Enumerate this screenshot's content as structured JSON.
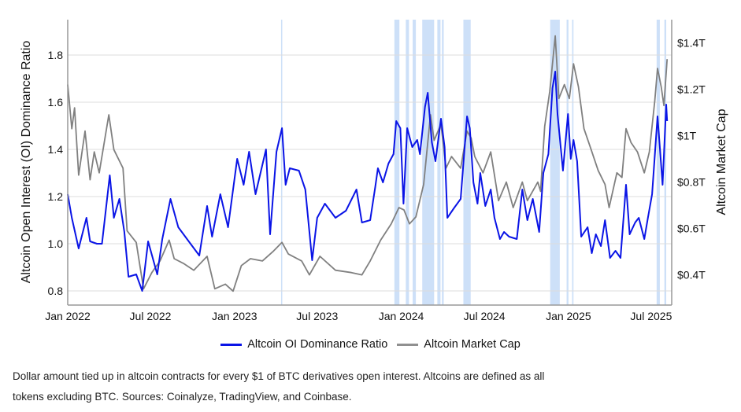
{
  "chart_data": {
    "type": "line",
    "title": "",
    "xlabel": "",
    "ylabel": "Altcoin Open Interest (OI) Dominance Ratio",
    "y2label": "Altcoin Market Cap",
    "xlim": [
      "2022-01-01",
      "2025-08-15"
    ],
    "ylim": [
      0.74,
      1.95
    ],
    "y2lim": [
      0.27,
      1.5
    ],
    "grid": true,
    "legend_position": "bottom",
    "x_ticks": [
      {
        "date": "2022-01-01",
        "label": "Jan 2022"
      },
      {
        "date": "2022-07-01",
        "label": "Jul 2022"
      },
      {
        "date": "2023-01-01",
        "label": "Jan 2023"
      },
      {
        "date": "2023-07-01",
        "label": "Jul 2023"
      },
      {
        "date": "2024-01-01",
        "label": "Jan 2024"
      },
      {
        "date": "2024-07-01",
        "label": "Jul 2024"
      },
      {
        "date": "2025-01-01",
        "label": "Jan 2025"
      },
      {
        "date": "2025-07-01",
        "label": "Jul 2025"
      }
    ],
    "y_ticks": [
      {
        "value": 0.8,
        "label": "0.8"
      },
      {
        "value": 1.0,
        "label": "1.0"
      },
      {
        "value": 1.2,
        "label": "1.2"
      },
      {
        "value": 1.4,
        "label": "1.4"
      },
      {
        "value": 1.6,
        "label": "1.6"
      },
      {
        "value": 1.8,
        "label": "1.8"
      }
    ],
    "y2_ticks": [
      {
        "value": 0.4,
        "label": "$0.4T"
      },
      {
        "value": 0.6,
        "label": "$0.6T"
      },
      {
        "value": 0.8,
        "label": "$0.8T"
      },
      {
        "value": 1.0,
        "label": "$1T"
      },
      {
        "value": 1.2,
        "label": "$1.2T"
      },
      {
        "value": 1.4,
        "label": "$1.4T"
      }
    ],
    "shaded_periods": [
      [
        "2023-04-13",
        "2023-04-15"
      ],
      [
        "2023-12-17",
        "2023-12-28"
      ],
      [
        "2024-01-11",
        "2024-01-18"
      ],
      [
        "2024-01-26",
        "2024-02-02"
      ],
      [
        "2024-02-16",
        "2024-03-13"
      ],
      [
        "2024-03-20",
        "2024-03-27"
      ],
      [
        "2024-03-30",
        "2024-04-03"
      ],
      [
        "2024-05-16",
        "2024-06-01"
      ],
      [
        "2024-11-22",
        "2024-12-13"
      ],
      [
        "2024-12-28",
        "2025-01-01"
      ],
      [
        "2025-01-09",
        "2025-01-12"
      ],
      [
        "2025-07-13",
        "2025-07-20"
      ],
      [
        "2025-07-30",
        "2025-08-03"
      ]
    ],
    "colors": {
      "oi_ratio": "#0a14e6",
      "market_cap": "#808080",
      "shade": "#c4dbf7",
      "grid": "#dddddd",
      "axis": "#999999"
    },
    "series": [
      {
        "name": "Altcoin OI Dominance Ratio",
        "axis": "left",
        "points": [
          [
            "2022-01-01",
            1.21
          ],
          [
            "2022-01-10",
            1.11
          ],
          [
            "2022-01-25",
            0.98
          ],
          [
            "2022-02-11",
            1.11
          ],
          [
            "2022-02-19",
            1.01
          ],
          [
            "2022-03-06",
            1.0
          ],
          [
            "2022-03-17",
            1.0
          ],
          [
            "2022-04-03",
            1.29
          ],
          [
            "2022-04-12",
            1.11
          ],
          [
            "2022-04-24",
            1.19
          ],
          [
            "2022-05-05",
            1.05
          ],
          [
            "2022-05-14",
            0.86
          ],
          [
            "2022-05-31",
            0.87
          ],
          [
            "2022-06-13",
            0.8
          ],
          [
            "2022-06-26",
            1.01
          ],
          [
            "2022-07-16",
            0.87
          ],
          [
            "2022-07-27",
            1.02
          ],
          [
            "2022-08-14",
            1.19
          ],
          [
            "2022-08-31",
            1.07
          ],
          [
            "2022-09-23",
            1.01
          ],
          [
            "2022-10-16",
            0.95
          ],
          [
            "2022-11-02",
            1.16
          ],
          [
            "2022-11-13",
            1.03
          ],
          [
            "2022-12-01",
            1.21
          ],
          [
            "2022-12-18",
            1.07
          ],
          [
            "2023-01-07",
            1.36
          ],
          [
            "2023-01-21",
            1.25
          ],
          [
            "2023-02-02",
            1.39
          ],
          [
            "2023-02-16",
            1.21
          ],
          [
            "2023-03-11",
            1.4
          ],
          [
            "2023-03-20",
            1.04
          ],
          [
            "2023-04-03",
            1.39
          ],
          [
            "2023-04-15",
            1.49
          ],
          [
            "2023-04-23",
            1.25
          ],
          [
            "2023-05-02",
            1.32
          ],
          [
            "2023-05-22",
            1.31
          ],
          [
            "2023-06-05",
            1.23
          ],
          [
            "2023-06-20",
            0.93
          ],
          [
            "2023-07-01",
            1.11
          ],
          [
            "2023-07-18",
            1.17
          ],
          [
            "2023-08-10",
            1.11
          ],
          [
            "2023-09-02",
            1.14
          ],
          [
            "2023-09-25",
            1.23
          ],
          [
            "2023-10-07",
            1.09
          ],
          [
            "2023-10-25",
            1.1
          ],
          [
            "2023-11-05",
            1.24
          ],
          [
            "2023-11-11",
            1.32
          ],
          [
            "2023-11-22",
            1.26
          ],
          [
            "2023-12-04",
            1.34
          ],
          [
            "2023-12-15",
            1.38
          ],
          [
            "2023-12-21",
            1.52
          ],
          [
            "2023-12-30",
            1.49
          ],
          [
            "2024-01-06",
            1.17
          ],
          [
            "2024-01-14",
            1.49
          ],
          [
            "2024-01-25",
            1.41
          ],
          [
            "2024-02-05",
            1.44
          ],
          [
            "2024-02-11",
            1.38
          ],
          [
            "2024-02-22",
            1.58
          ],
          [
            "2024-02-28",
            1.64
          ],
          [
            "2024-03-08",
            1.43
          ],
          [
            "2024-03-16",
            1.35
          ],
          [
            "2024-03-28",
            1.53
          ],
          [
            "2024-04-05",
            1.41
          ],
          [
            "2024-04-11",
            1.11
          ],
          [
            "2024-04-25",
            1.15
          ],
          [
            "2024-05-10",
            1.19
          ],
          [
            "2024-05-24",
            1.54
          ],
          [
            "2024-05-30",
            1.49
          ],
          [
            "2024-06-07",
            1.26
          ],
          [
            "2024-06-16",
            1.17
          ],
          [
            "2024-06-22",
            1.3
          ],
          [
            "2024-07-03",
            1.16
          ],
          [
            "2024-07-15",
            1.23
          ],
          [
            "2024-07-23",
            1.11
          ],
          [
            "2024-08-04",
            1.02
          ],
          [
            "2024-08-13",
            1.05
          ],
          [
            "2024-08-24",
            1.03
          ],
          [
            "2024-09-10",
            1.02
          ],
          [
            "2024-09-22",
            1.23
          ],
          [
            "2024-10-03",
            1.1
          ],
          [
            "2024-10-15",
            1.19
          ],
          [
            "2024-10-29",
            1.05
          ],
          [
            "2024-11-07",
            1.3
          ],
          [
            "2024-11-18",
            1.38
          ],
          [
            "2024-11-27",
            1.66
          ],
          [
            "2024-12-03",
            1.73
          ],
          [
            "2024-12-08",
            1.55
          ],
          [
            "2024-12-20",
            1.31
          ],
          [
            "2024-12-31",
            1.55
          ],
          [
            "2025-01-06",
            1.36
          ],
          [
            "2025-01-12",
            1.44
          ],
          [
            "2025-01-20",
            1.35
          ],
          [
            "2025-01-29",
            1.03
          ],
          [
            "2025-02-12",
            1.07
          ],
          [
            "2025-02-21",
            0.96
          ],
          [
            "2025-03-02",
            1.04
          ],
          [
            "2025-03-13",
            0.99
          ],
          [
            "2025-03-22",
            1.1
          ],
          [
            "2025-04-02",
            0.94
          ],
          [
            "2025-04-14",
            0.97
          ],
          [
            "2025-04-25",
            0.94
          ],
          [
            "2025-05-07",
            1.25
          ],
          [
            "2025-05-15",
            1.04
          ],
          [
            "2025-05-27",
            1.09
          ],
          [
            "2025-06-04",
            1.11
          ],
          [
            "2025-06-16",
            1.02
          ],
          [
            "2025-06-24",
            1.11
          ],
          [
            "2025-07-03",
            1.21
          ],
          [
            "2025-07-15",
            1.54
          ],
          [
            "2025-07-20",
            1.41
          ],
          [
            "2025-07-26",
            1.25
          ],
          [
            "2025-08-03",
            1.59
          ],
          [
            "2025-08-05",
            1.52
          ]
        ]
      },
      {
        "name": "Altcoin Market Cap",
        "axis": "right",
        "unit": "$T",
        "points": [
          [
            "2022-01-01",
            1.22
          ],
          [
            "2022-01-10",
            1.03
          ],
          [
            "2022-01-16",
            1.12
          ],
          [
            "2022-01-25",
            0.83
          ],
          [
            "2022-02-08",
            1.02
          ],
          [
            "2022-02-19",
            0.81
          ],
          [
            "2022-02-28",
            0.93
          ],
          [
            "2022-03-11",
            0.84
          ],
          [
            "2022-04-01",
            1.09
          ],
          [
            "2022-04-12",
            0.94
          ],
          [
            "2022-05-02",
            0.86
          ],
          [
            "2022-05-11",
            0.59
          ],
          [
            "2022-05-31",
            0.54
          ],
          [
            "2022-06-16",
            0.34
          ],
          [
            "2022-07-04",
            0.41
          ],
          [
            "2022-07-22",
            0.46
          ],
          [
            "2022-08-11",
            0.55
          ],
          [
            "2022-08-22",
            0.47
          ],
          [
            "2022-09-11",
            0.45
          ],
          [
            "2022-10-04",
            0.42
          ],
          [
            "2022-11-02",
            0.48
          ],
          [
            "2022-11-19",
            0.34
          ],
          [
            "2022-12-12",
            0.36
          ],
          [
            "2022-12-29",
            0.33
          ],
          [
            "2023-01-16",
            0.44
          ],
          [
            "2023-02-05",
            0.47
          ],
          [
            "2023-03-03",
            0.46
          ],
          [
            "2023-03-26",
            0.5
          ],
          [
            "2023-04-15",
            0.54
          ],
          [
            "2023-04-29",
            0.49
          ],
          [
            "2023-05-28",
            0.46
          ],
          [
            "2023-06-14",
            0.4
          ],
          [
            "2023-07-07",
            0.48
          ],
          [
            "2023-08-10",
            0.42
          ],
          [
            "2023-09-14",
            0.41
          ],
          [
            "2023-10-07",
            0.4
          ],
          [
            "2023-10-25",
            0.46
          ],
          [
            "2023-11-17",
            0.55
          ],
          [
            "2023-12-10",
            0.62
          ],
          [
            "2023-12-27",
            0.69
          ],
          [
            "2024-01-07",
            0.68
          ],
          [
            "2024-01-19",
            0.62
          ],
          [
            "2024-02-02",
            0.65
          ],
          [
            "2024-02-19",
            0.79
          ],
          [
            "2024-03-05",
            1.09
          ],
          [
            "2024-03-13",
            0.98
          ],
          [
            "2024-03-28",
            1.05
          ],
          [
            "2024-04-08",
            0.86
          ],
          [
            "2024-04-20",
            0.91
          ],
          [
            "2024-05-10",
            0.86
          ],
          [
            "2024-05-24",
            1.02
          ],
          [
            "2024-06-02",
            0.99
          ],
          [
            "2024-06-10",
            0.91
          ],
          [
            "2024-06-28",
            0.84
          ],
          [
            "2024-07-15",
            0.93
          ],
          [
            "2024-08-01",
            0.72
          ],
          [
            "2024-08-18",
            0.8
          ],
          [
            "2024-09-02",
            0.69
          ],
          [
            "2024-09-22",
            0.8
          ],
          [
            "2024-10-03",
            0.72
          ],
          [
            "2024-10-26",
            0.8
          ],
          [
            "2024-11-01",
            0.76
          ],
          [
            "2024-11-10",
            1.04
          ],
          [
            "2024-11-21",
            1.19
          ],
          [
            "2024-12-03",
            1.43
          ],
          [
            "2024-12-11",
            1.16
          ],
          [
            "2024-12-23",
            1.22
          ],
          [
            "2025-01-03",
            1.16
          ],
          [
            "2025-01-12",
            1.31
          ],
          [
            "2025-01-23",
            1.21
          ],
          [
            "2025-02-04",
            1.03
          ],
          [
            "2025-02-18",
            0.95
          ],
          [
            "2025-03-07",
            0.85
          ],
          [
            "2025-03-22",
            0.79
          ],
          [
            "2025-03-31",
            0.69
          ],
          [
            "2025-04-17",
            0.84
          ],
          [
            "2025-04-28",
            0.82
          ],
          [
            "2025-05-07",
            1.03
          ],
          [
            "2025-05-18",
            0.97
          ],
          [
            "2025-06-01",
            0.93
          ],
          [
            "2025-06-16",
            0.84
          ],
          [
            "2025-06-27",
            0.93
          ],
          [
            "2025-07-09",
            1.15
          ],
          [
            "2025-07-15",
            1.29
          ],
          [
            "2025-07-23",
            1.21
          ],
          [
            "2025-07-29",
            1.13
          ],
          [
            "2025-08-05",
            1.33
          ]
        ]
      }
    ]
  },
  "legend": {
    "items": [
      {
        "label": "Altcoin OI Dominance Ratio"
      },
      {
        "label": "Altcoin Market Cap"
      }
    ]
  },
  "caption": {
    "line1": "Dollar amount tied up in altcoin contracts for every $1 of BTC derivatives open interest. Altcoins are defined as all",
    "line2": "tokens excluding BTC. Sources: Coinalyze, TradingView, and Coinbase."
  }
}
